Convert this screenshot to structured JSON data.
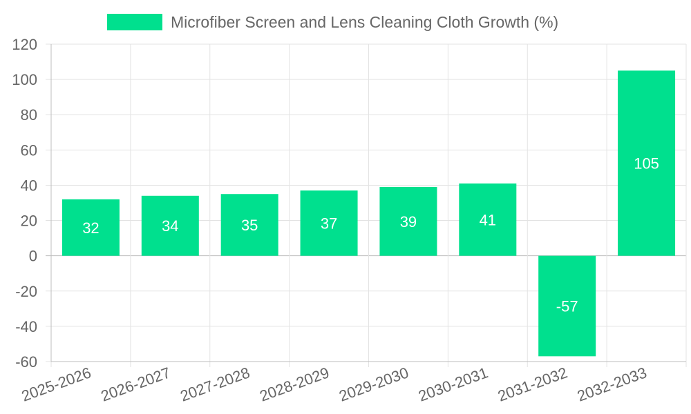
{
  "chart_data": {
    "type": "bar",
    "categories": [
      "2025-2026",
      "2026-2027",
      "2027-2028",
      "2028-2029",
      "2029-2030",
      "2030-2031",
      "2031-2032",
      "2032-2033"
    ],
    "series": [
      {
        "name": "Microfiber Screen and Lens Cleaning Cloth Growth (%)",
        "values": [
          32,
          34,
          35,
          37,
          39,
          41,
          -57,
          105
        ],
        "color": "#00e08e"
      }
    ],
    "title": "",
    "xlabel": "",
    "ylabel": "",
    "ylim": [
      -60,
      120
    ],
    "yticks": [
      120,
      100,
      80,
      60,
      40,
      20,
      0,
      -20,
      -40,
      -60
    ],
    "grid": true,
    "legend": "top"
  }
}
